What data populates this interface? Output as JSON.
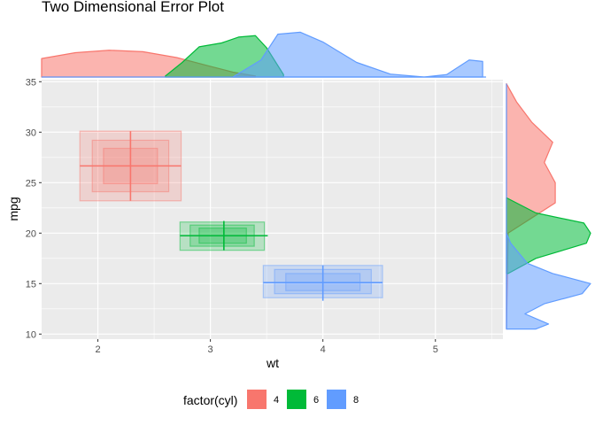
{
  "chart_data": {
    "type": "scatter",
    "title": "Two Dimensional Error Plot",
    "xlabel": "wt",
    "ylabel": "mpg",
    "xlim": [
      1.5,
      5.6
    ],
    "ylim": [
      9.5,
      35.2
    ],
    "x_ticks": [
      2,
      3,
      4,
      5
    ],
    "y_ticks": [
      10,
      15,
      20,
      25,
      30,
      35
    ],
    "grid": true,
    "legend": {
      "title": "factor(cyl)",
      "position": "bottom",
      "entries": [
        "4",
        "6",
        "8"
      ]
    },
    "series": [
      {
        "name": "4",
        "color": "#F8766D",
        "x_mean": 2.29,
        "y_mean": 26.66,
        "x_err": [
          1.84,
          2.74
        ],
        "y_err": [
          23.2,
          30.1
        ],
        "boxes": [
          {
            "x": [
              1.84,
              2.74
            ],
            "y": [
              23.2,
              30.1
            ]
          },
          {
            "x": [
              1.95,
              2.63
            ],
            "y": [
              24.1,
              29.2
            ]
          },
          {
            "x": [
              2.05,
              2.53
            ],
            "y": [
              24.9,
              28.4
            ]
          }
        ]
      },
      {
        "name": "6",
        "color": "#00BA38",
        "x_mean": 3.12,
        "y_mean": 19.74,
        "x_err": [
          2.73,
          3.51
        ],
        "y_err": [
          18.3,
          21.2
        ],
        "boxes": [
          {
            "x": [
              2.73,
              3.48
            ],
            "y": [
              18.3,
              21.1
            ]
          },
          {
            "x": [
              2.82,
              3.39
            ],
            "y": [
              18.7,
              20.8
            ]
          },
          {
            "x": [
              2.9,
              3.32
            ],
            "y": [
              19.0,
              20.5
            ]
          }
        ]
      },
      {
        "name": "8",
        "color": "#619CFF",
        "x_mean": 4.0,
        "y_mean": 15.1,
        "x_err": [
          3.47,
          4.53
        ],
        "y_err": [
          13.3,
          16.8
        ],
        "boxes": [
          {
            "x": [
              3.47,
              4.53
            ],
            "y": [
              13.6,
              16.8
            ]
          },
          {
            "x": [
              3.57,
              4.43
            ],
            "y": [
              14.0,
              16.4
            ]
          },
          {
            "x": [
              3.67,
              4.33
            ],
            "y": [
              14.3,
              16.0
            ]
          }
        ]
      }
    ],
    "marginal_x_density": [
      {
        "name": "4",
        "color": "#F8766D",
        "x": [
          1.5,
          1.8,
          2.1,
          2.4,
          2.7,
          3.0,
          3.2,
          3.4
        ],
        "density": [
          0.38,
          0.5,
          0.55,
          0.52,
          0.4,
          0.22,
          0.1,
          0.02
        ]
      },
      {
        "name": "6",
        "color": "#00BA38",
        "x": [
          2.6,
          2.75,
          2.9,
          3.1,
          3.25,
          3.4,
          3.5,
          3.65
        ],
        "density": [
          0.02,
          0.3,
          0.62,
          0.7,
          0.82,
          0.85,
          0.6,
          0.05
        ]
      },
      {
        "name": "8",
        "color": "#619CFF",
        "x": [
          3.2,
          3.45,
          3.6,
          3.8,
          4.0,
          4.3,
          4.6,
          4.9,
          5.1,
          5.3,
          5.42
        ],
        "density": [
          0.0,
          0.35,
          0.88,
          0.92,
          0.72,
          0.3,
          0.06,
          0.0,
          0.05,
          0.35,
          0.32
        ]
      }
    ],
    "marginal_y_density": [
      {
        "name": "4",
        "color": "#F8766D",
        "y": [
          10.5,
          20,
          21.5,
          23,
          25,
          27,
          29,
          31,
          33,
          34.8
        ],
        "density": [
          0.0,
          0.02,
          0.3,
          0.58,
          0.58,
          0.45,
          0.55,
          0.3,
          0.12,
          0.0
        ]
      },
      {
        "name": "6",
        "color": "#00BA38",
        "y": [
          16,
          17.5,
          19,
          20,
          21,
          22,
          23.5
        ],
        "density": [
          0.02,
          0.35,
          0.95,
          1.0,
          0.92,
          0.35,
          0.0
        ]
      },
      {
        "name": "8",
        "color": "#619CFF",
        "y": [
          10.5,
          11,
          12,
          13,
          14,
          15,
          16,
          17,
          18,
          19,
          20
        ],
        "density": [
          0.35,
          0.5,
          0.22,
          0.45,
          0.9,
          1.0,
          0.55,
          0.25,
          0.15,
          0.05,
          0.0
        ]
      }
    ]
  }
}
